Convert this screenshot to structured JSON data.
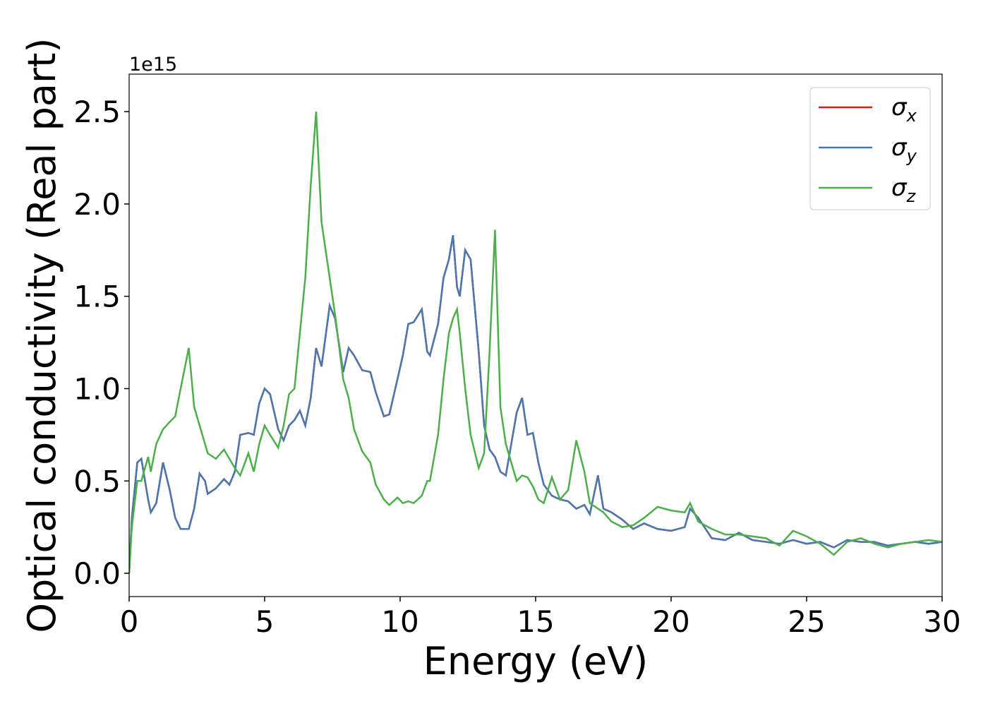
{
  "chart_data": {
    "type": "line",
    "xlabel": "Energy (eV)",
    "ylabel": "Optical conductivity (Real part)",
    "y_offset_label": "1e15",
    "x": [
      0,
      0.1,
      0.3,
      0.45,
      0.7,
      0.8,
      1.0,
      1.25,
      1.5,
      1.7,
      1.9,
      2.2,
      2.4,
      2.6,
      2.8,
      2.9,
      3.2,
      3.5,
      3.7,
      3.9,
      4.1,
      4.4,
      4.6,
      4.8,
      5.0,
      5.2,
      5.5,
      5.7,
      5.9,
      6.1,
      6.3,
      6.5,
      6.7,
      6.9,
      7.1,
      7.4,
      7.6,
      7.9,
      8.1,
      8.3,
      8.6,
      8.9,
      9.1,
      9.4,
      9.6,
      9.9,
      10.1,
      10.3,
      10.5,
      10.8,
      11.0,
      11.1,
      11.4,
      11.6,
      11.8,
      11.95,
      12.1,
      12.2,
      12.4,
      12.6,
      12.9,
      13.1,
      13.3,
      13.5,
      13.7,
      13.9,
      14.1,
      14.3,
      14.5,
      14.7,
      14.9,
      15.1,
      15.3,
      15.6,
      15.9,
      16.2,
      16.5,
      16.8,
      17.0,
      17.3,
      17.5,
      17.8,
      18.2,
      18.6,
      19.0,
      19.5,
      20.0,
      20.5,
      20.7,
      21.0,
      21.5,
      22.0,
      22.5,
      23.0,
      23.5,
      24.0,
      24.5,
      25.0,
      25.5,
      26.0,
      26.5,
      27.0,
      27.5,
      28.0,
      28.5,
      29.0,
      29.5,
      30.0
    ],
    "series": [
      {
        "name": "σx",
        "color": "#e41a1c",
        "values": [
          0,
          0.3,
          0.6,
          0.62,
          0.4,
          0.33,
          0.38,
          0.6,
          0.45,
          0.3,
          0.24,
          0.24,
          0.35,
          0.54,
          0.5,
          0.43,
          0.46,
          0.51,
          0.48,
          0.55,
          0.75,
          0.76,
          0.75,
          0.92,
          1.0,
          0.97,
          0.78,
          0.72,
          0.8,
          0.83,
          0.88,
          0.8,
          0.95,
          1.22,
          1.12,
          1.45,
          1.38,
          1.09,
          1.22,
          1.18,
          1.1,
          1.09,
          0.98,
          0.85,
          0.86,
          1.05,
          1.18,
          1.35,
          1.36,
          1.43,
          1.2,
          1.18,
          1.35,
          1.6,
          1.7,
          1.83,
          1.55,
          1.5,
          1.75,
          1.7,
          1.2,
          0.8,
          0.67,
          0.63,
          0.55,
          0.53,
          0.7,
          0.87,
          0.95,
          0.75,
          0.76,
          0.6,
          0.48,
          0.42,
          0.4,
          0.39,
          0.35,
          0.37,
          0.32,
          0.53,
          0.35,
          0.33,
          0.29,
          0.24,
          0.27,
          0.24,
          0.23,
          0.25,
          0.35,
          0.3,
          0.19,
          0.18,
          0.22,
          0.18,
          0.17,
          0.16,
          0.18,
          0.16,
          0.17,
          0.14,
          0.18,
          0.17,
          0.17,
          0.15,
          0.16,
          0.17,
          0.16,
          0.17
        ]
      },
      {
        "name": "σy",
        "color": "#4878b0",
        "values": [
          0,
          0.3,
          0.6,
          0.62,
          0.4,
          0.33,
          0.38,
          0.6,
          0.45,
          0.3,
          0.24,
          0.24,
          0.35,
          0.54,
          0.5,
          0.43,
          0.46,
          0.51,
          0.48,
          0.55,
          0.75,
          0.76,
          0.75,
          0.92,
          1.0,
          0.97,
          0.78,
          0.72,
          0.8,
          0.83,
          0.88,
          0.8,
          0.95,
          1.22,
          1.12,
          1.45,
          1.38,
          1.09,
          1.22,
          1.18,
          1.1,
          1.09,
          0.98,
          0.85,
          0.86,
          1.05,
          1.18,
          1.35,
          1.36,
          1.43,
          1.2,
          1.18,
          1.35,
          1.6,
          1.7,
          1.83,
          1.55,
          1.5,
          1.75,
          1.7,
          1.2,
          0.8,
          0.67,
          0.63,
          0.55,
          0.53,
          0.7,
          0.87,
          0.95,
          0.75,
          0.76,
          0.6,
          0.48,
          0.42,
          0.4,
          0.39,
          0.35,
          0.37,
          0.32,
          0.53,
          0.35,
          0.33,
          0.29,
          0.24,
          0.27,
          0.24,
          0.23,
          0.25,
          0.35,
          0.3,
          0.19,
          0.18,
          0.22,
          0.18,
          0.17,
          0.16,
          0.18,
          0.16,
          0.17,
          0.14,
          0.18,
          0.17,
          0.17,
          0.15,
          0.16,
          0.17,
          0.16,
          0.17
        ]
      },
      {
        "name": "σz",
        "color": "#4daf4a",
        "values": [
          0,
          0.25,
          0.5,
          0.5,
          0.63,
          0.55,
          0.7,
          0.78,
          0.82,
          0.85,
          1.0,
          1.22,
          0.9,
          0.8,
          0.7,
          0.65,
          0.62,
          0.67,
          0.62,
          0.57,
          0.53,
          0.65,
          0.55,
          0.7,
          0.8,
          0.75,
          0.68,
          0.8,
          0.97,
          1.0,
          1.3,
          1.6,
          2.1,
          2.5,
          1.9,
          1.6,
          1.4,
          1.05,
          0.95,
          0.78,
          0.66,
          0.6,
          0.48,
          0.4,
          0.37,
          0.41,
          0.38,
          0.39,
          0.38,
          0.42,
          0.5,
          0.5,
          0.75,
          1.05,
          1.3,
          1.38,
          1.43,
          1.3,
          1.0,
          0.75,
          0.57,
          0.65,
          1.2,
          1.86,
          0.9,
          0.7,
          0.6,
          0.5,
          0.53,
          0.52,
          0.47,
          0.4,
          0.38,
          0.52,
          0.4,
          0.45,
          0.72,
          0.55,
          0.38,
          0.35,
          0.33,
          0.28,
          0.25,
          0.26,
          0.3,
          0.36,
          0.34,
          0.33,
          0.38,
          0.28,
          0.24,
          0.21,
          0.21,
          0.2,
          0.19,
          0.15,
          0.23,
          0.2,
          0.16,
          0.1,
          0.17,
          0.19,
          0.16,
          0.14,
          0.16,
          0.17,
          0.18,
          0.17
        ]
      }
    ],
    "xlim": [
      0,
      30
    ],
    "xticks": [
      0,
      5,
      10,
      15,
      20,
      25,
      30
    ],
    "ylim": [
      -0.126,
      2.703
    ],
    "yticks": [
      {
        "value": 0,
        "label": "0.0"
      },
      0.5,
      {
        "value": 1,
        "label": "1.0"
      },
      1.5,
      {
        "value": 2,
        "label": "2.0"
      },
      2.5
    ],
    "legend": "upper right",
    "grid": false
  }
}
